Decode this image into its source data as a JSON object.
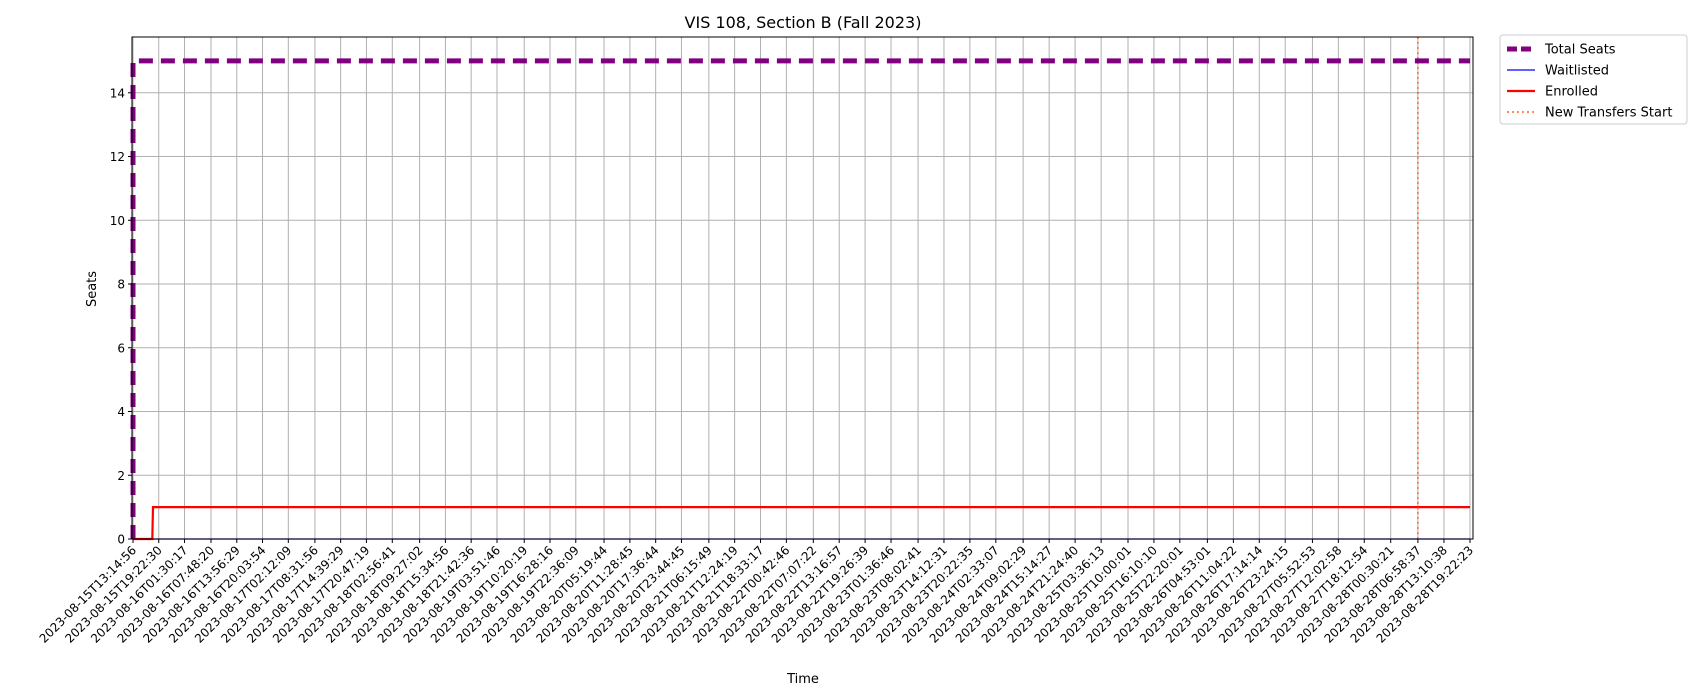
{
  "chart_data": {
    "type": "line",
    "title": "VIS 108, Section B (Fall 2023)",
    "xlabel": "Time",
    "ylabel": "Seats",
    "ylim": [
      0,
      15.75
    ],
    "yticks": [
      0,
      2,
      4,
      6,
      8,
      10,
      12,
      14
    ],
    "grid": true,
    "legend_position": "outside-top-right",
    "x_ticks": [
      "2023-08-15T13:14:56",
      "2023-08-15T19:22:30",
      "2023-08-16T01:30:17",
      "2023-08-16T07:48:20",
      "2023-08-16T13:56:29",
      "2023-08-16T20:03:54",
      "2023-08-17T02:12:09",
      "2023-08-17T08:31:56",
      "2023-08-17T14:39:29",
      "2023-08-17T20:47:19",
      "2023-08-18T02:56:41",
      "2023-08-18T09:27:02",
      "2023-08-18T15:34:56",
      "2023-08-18T21:42:36",
      "2023-08-19T03:51:46",
      "2023-08-19T10:20:19",
      "2023-08-19T16:28:16",
      "2023-08-19T22:36:09",
      "2023-08-20T05:19:44",
      "2023-08-20T11:28:45",
      "2023-08-20T17:36:44",
      "2023-08-20T23:44:45",
      "2023-08-21T06:15:49",
      "2023-08-21T12:24:19",
      "2023-08-21T18:33:17",
      "2023-08-22T00:42:46",
      "2023-08-22T07:07:22",
      "2023-08-22T13:16:57",
      "2023-08-22T19:26:39",
      "2023-08-23T01:36:46",
      "2023-08-23T08:02:41",
      "2023-08-23T14:12:31",
      "2023-08-23T20:22:35",
      "2023-08-24T02:33:07",
      "2023-08-24T09:02:29",
      "2023-08-24T15:14:27",
      "2023-08-24T21:24:40",
      "2023-08-25T03:36:13",
      "2023-08-25T10:00:01",
      "2023-08-25T16:10:10",
      "2023-08-25T22:20:01",
      "2023-08-26T04:53:01",
      "2023-08-26T11:04:22",
      "2023-08-26T17:14:14",
      "2023-08-26T23:24:15",
      "2023-08-27T05:52:53",
      "2023-08-27T12:02:58",
      "2023-08-27T18:12:54",
      "2023-08-28T00:30:21",
      "2023-08-28T06:58:37",
      "2023-08-28T13:10:38",
      "2023-08-28T19:22:23"
    ],
    "series": [
      {
        "name": "Total Seats",
        "color": "#800080",
        "style": "dashed",
        "points": [
          {
            "x": "2023-08-15T13:14:56",
            "y": 0
          },
          {
            "x": "2023-08-15T13:14:56",
            "y": 15
          },
          {
            "x": "2023-08-28T19:22:23",
            "y": 15
          }
        ]
      },
      {
        "name": "Waitlisted",
        "color": "#0000ff",
        "style": "solid",
        "points": [
          {
            "x": "2023-08-15T13:14:56",
            "y": 0
          },
          {
            "x": "2023-08-28T19:22:23",
            "y": 0
          }
        ]
      },
      {
        "name": "Enrolled",
        "color": "#ff0000",
        "style": "solid",
        "points": [
          {
            "x": "2023-08-15T13:14:56",
            "y": 0
          },
          {
            "x": "2023-08-15T17:50:00",
            "y": 0
          },
          {
            "x": "2023-08-15T18:00:00",
            "y": 1
          },
          {
            "x": "2023-08-28T19:22:23",
            "y": 1
          }
        ]
      },
      {
        "name": "New Transfers Start",
        "color": "#ff4500",
        "style": "dotted",
        "vline_x": "2023-08-28T06:58:37"
      }
    ]
  }
}
